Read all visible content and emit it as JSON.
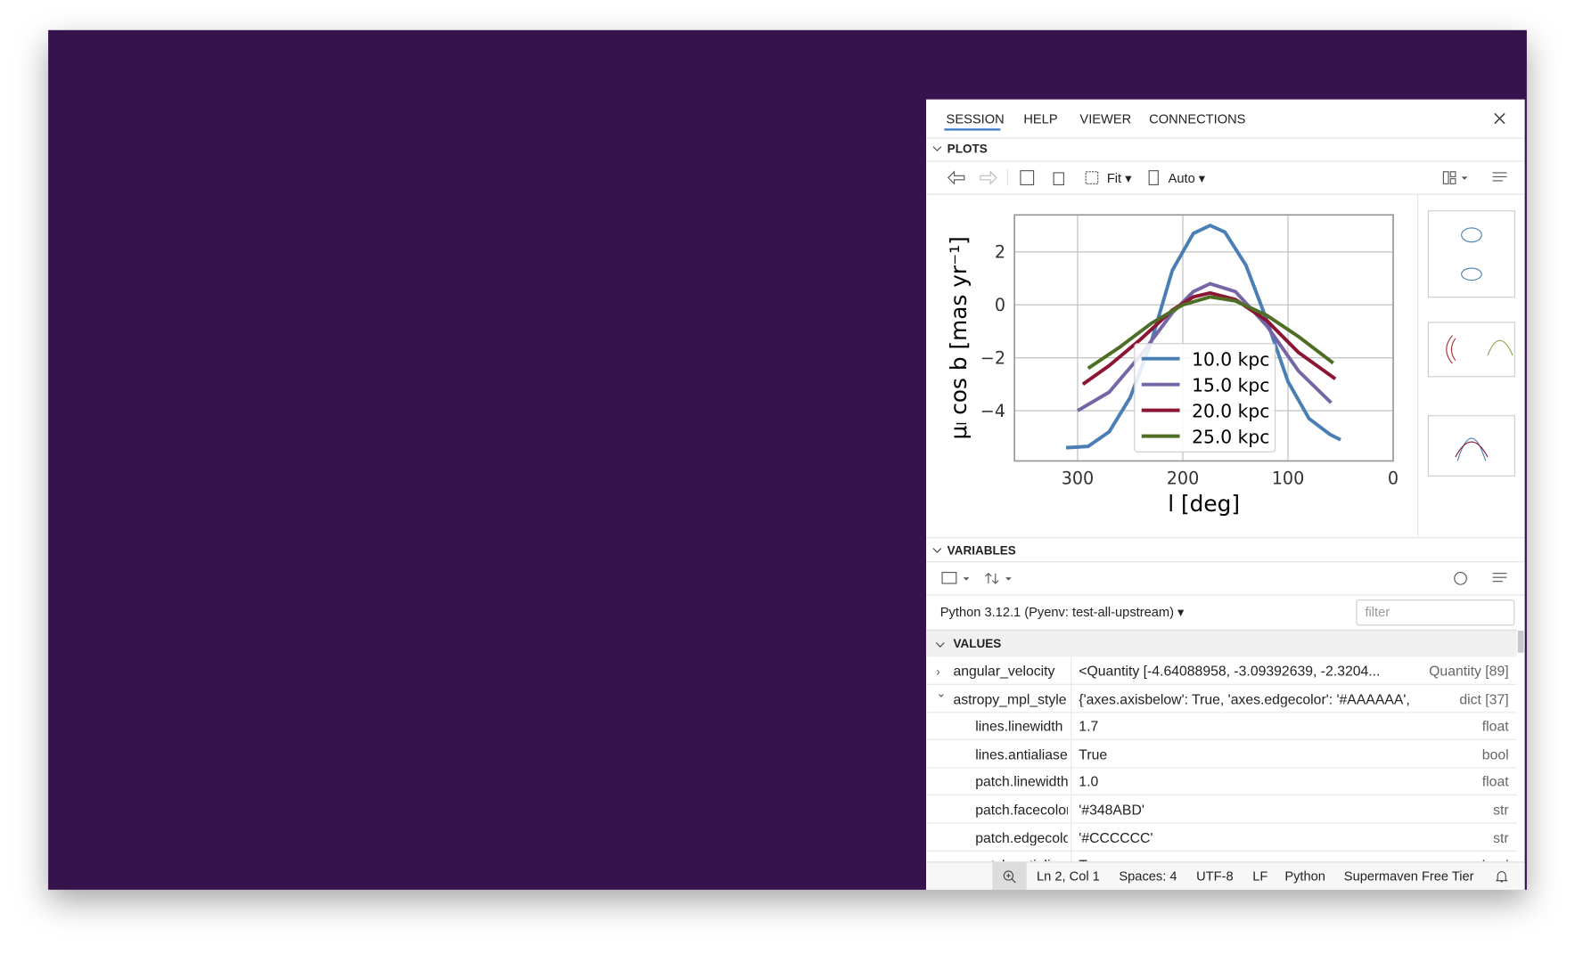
{
  "tabs": [
    "SESSION",
    "HELP",
    "VIEWER",
    "CONNECTIONS"
  ],
  "plots": {
    "title": "PLOTS",
    "toolbar": {
      "fit": "Fit",
      "auto": "Auto"
    },
    "chart_data": {
      "type": "line",
      "xlabel": "l [deg]",
      "ylabel": "μₗ cos b [mas yr⁻¹]",
      "xlim": [
        360,
        0
      ],
      "ylim": [
        -5.9,
        3.4
      ],
      "xticks": [
        300,
        200,
        100,
        0
      ],
      "yticks": [
        2,
        0,
        {
          "value": -2,
          "label": "−2"
        },
        {
          "value": -4,
          "label": "−4"
        }
      ],
      "grid": true,
      "legend": "lower center",
      "series": [
        {
          "name": "10.0 kpc",
          "color": "#4a7fb5",
          "x": [
            311,
            290,
            270,
            250,
            230,
            210,
            190,
            174,
            160,
            140,
            120,
            100,
            80,
            60,
            50
          ],
          "values": [
            -5.4,
            -5.35,
            -4.8,
            -3.5,
            -1.4,
            1.3,
            2.7,
            3.0,
            2.75,
            1.5,
            -0.6,
            -2.9,
            -4.3,
            -4.9,
            -5.1
          ]
        },
        {
          "name": "15.0 kpc",
          "color": "#7565a6",
          "x": [
            300,
            270,
            240,
            210,
            190,
            174,
            150,
            120,
            90,
            59
          ],
          "values": [
            -4.0,
            -3.3,
            -1.9,
            -0.3,
            0.5,
            0.8,
            0.5,
            -0.8,
            -2.5,
            -3.7
          ]
        },
        {
          "name": "20.0 kpc",
          "color": "#8c1533",
          "x": [
            295,
            270,
            240,
            210,
            190,
            174,
            150,
            120,
            90,
            55
          ],
          "values": [
            -3.0,
            -2.3,
            -1.3,
            -0.2,
            0.3,
            0.45,
            0.2,
            -0.6,
            -1.8,
            -2.8
          ]
        },
        {
          "name": "25.0 kpc",
          "color": "#4d6e24",
          "x": [
            290,
            260,
            230,
            200,
            174,
            150,
            120,
            90,
            57
          ],
          "values": [
            -2.4,
            -1.6,
            -0.7,
            0.0,
            0.3,
            0.15,
            -0.4,
            -1.2,
            -2.2
          ]
        }
      ]
    }
  },
  "variables": {
    "title": "VARIABLES",
    "interpreter": "Python 3.12.1 (Pyenv: test-all-upstream)",
    "filter_placeholder": "filter",
    "values_title": "VALUES",
    "rows": [
      {
        "name": "angular_velocity",
        "value": "<Quantity [-4.64088958, -3.09392639, -2.3204...",
        "type": "Quantity [89]"
      },
      {
        "name": "astropy_mpl_style",
        "value": "{'axes.axisbelow': True, 'axes.edgecolor': '#AAAAAA', '...",
        "type": "dict [37]",
        "children": [
          {
            "name": "lines.linewidth",
            "value": "1.7",
            "type": "float"
          },
          {
            "name": "lines.antialiased",
            "value": "True",
            "type": "bool"
          },
          {
            "name": "patch.linewidth",
            "value": "1.0",
            "type": "float"
          },
          {
            "name": "patch.facecolor",
            "value": "'#348ABD'",
            "type": "str"
          },
          {
            "name": "patch.edgecolor",
            "value": "'#CCCCCC'",
            "type": "str"
          },
          {
            "name": "patch.antialiased",
            "value": "True",
            "type": "bool"
          }
        ]
      }
    ]
  },
  "status_bar": [
    "Ln 2, Col 1",
    "Spaces: 4",
    "UTF-8",
    "LF",
    "Python",
    "Supermaven Free Tier"
  ]
}
